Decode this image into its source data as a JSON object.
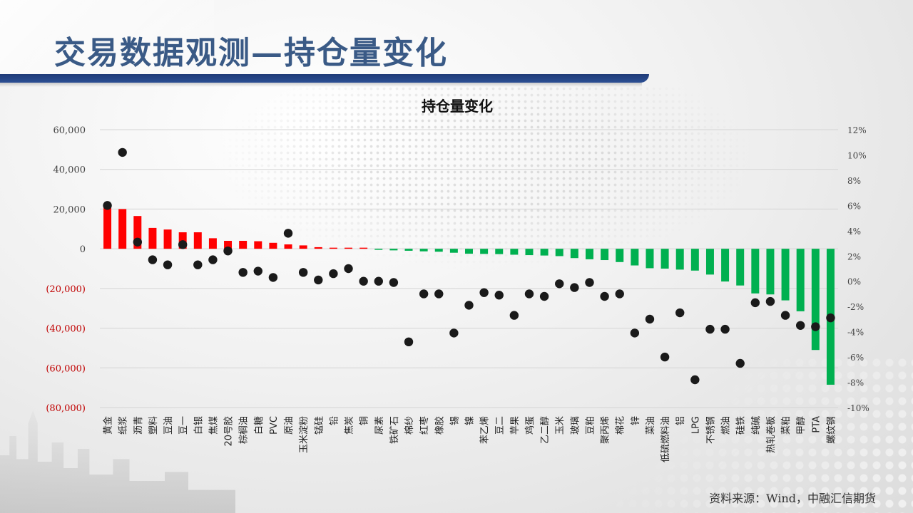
{
  "slide": {
    "title": "交易数据观测—持仓量变化",
    "source": "资料来源：Wind，中融汇信期货"
  },
  "colors": {
    "title": "#3a5a86",
    "title_bar": "#1f3b78",
    "positive_bar": "#ff0000",
    "negative_bar": "#00b050",
    "dot": "#1a1a1a",
    "negative_tick": "#c00000"
  },
  "chart_data": {
    "type": "bar",
    "title": "持仓量变化",
    "xlabel": "",
    "ylabel": "",
    "grid": true,
    "legend": "none",
    "ylim": [
      -80000,
      60000
    ],
    "y2lim": [
      -0.1,
      0.12
    ],
    "y_ticks": [
      "60,000",
      "40,000",
      "20,000",
      "0",
      "(20,000)",
      "(40,000)",
      "(60,000)",
      "(80,000)"
    ],
    "y2_ticks": [
      "12%",
      "10%",
      "8%",
      "6%",
      "4%",
      "2%",
      "0%",
      "-2%",
      "-4%",
      "-6%",
      "-8%",
      "-10%"
    ],
    "categories": [
      "黄金",
      "纸浆",
      "沥青",
      "塑料",
      "豆油",
      "豆一",
      "白银",
      "焦煤",
      "20号胶",
      "棕榈油",
      "白糖",
      "PVC",
      "原油",
      "玉米淀粉",
      "锰硅",
      "铅",
      "焦炭",
      "铜",
      "尿素",
      "铁矿石",
      "棉纱",
      "红枣",
      "橡胶",
      "锡",
      "镍",
      "苯乙烯",
      "豆二",
      "苹果",
      "鸡蛋",
      "乙二醇",
      "玉米",
      "玻璃",
      "豆粕",
      "聚丙烯",
      "棉花",
      "锌",
      "菜油",
      "低硫燃料油",
      "铝",
      "LPG",
      "不锈钢",
      "燃油",
      "硅铁",
      "纯碱",
      "热轧卷板",
      "菜粕",
      "甲醇",
      "PTA",
      "螺纹钢"
    ],
    "series": [
      {
        "axis": "left",
        "values": [
          21000,
          20000,
          16500,
          10500,
          9700,
          8300,
          8300,
          5300,
          4000,
          4000,
          3800,
          3000,
          2200,
          1700,
          800,
          500,
          400,
          300,
          -500,
          -800,
          -1000,
          -1300,
          -1500,
          -2000,
          -2500,
          -2600,
          -2700,
          -3000,
          -3200,
          -3400,
          -3700,
          -4700,
          -5300,
          -5700,
          -6700,
          -8400,
          -9800,
          -10000,
          -10500,
          -11000,
          -13000,
          -16500,
          -18500,
          -22500,
          -23000,
          -26000,
          -31500,
          -51000,
          -68500
        ]
      },
      {
        "axis": "right",
        "type": "scatter",
        "values": [
          0.06,
          0.102,
          0.031,
          0.017,
          0.013,
          0.029,
          0.013,
          0.017,
          0.024,
          0.007,
          0.008,
          0.003,
          0.038,
          0.007,
          0.001,
          0.006,
          0.01,
          0.0,
          0.0,
          -0.001,
          -0.048,
          -0.01,
          -0.01,
          -0.041,
          -0.019,
          -0.009,
          -0.011,
          -0.027,
          -0.01,
          -0.012,
          -0.002,
          -0.005,
          -0.001,
          -0.012,
          -0.01,
          -0.041,
          -0.03,
          -0.06,
          -0.025,
          -0.078,
          -0.038,
          -0.038,
          -0.065,
          -0.017,
          -0.016,
          -0.027,
          -0.035,
          -0.036,
          -0.029
        ]
      }
    ]
  }
}
